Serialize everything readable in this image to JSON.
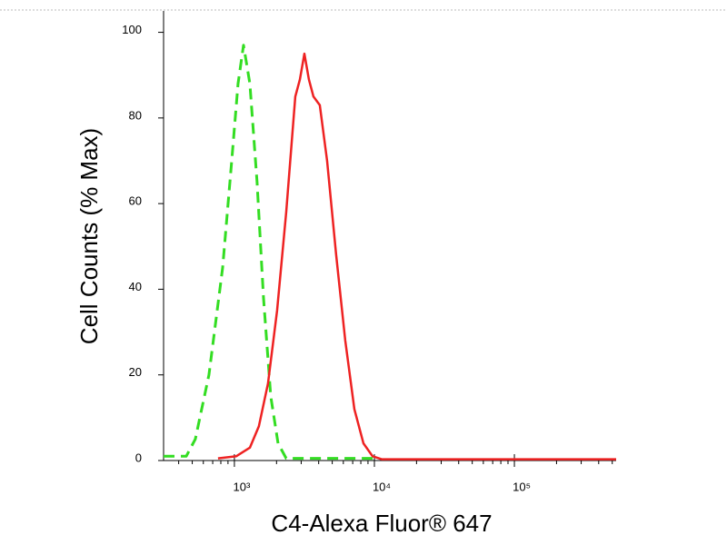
{
  "chart_data": {
    "type": "line",
    "x_label": "C4-Alexa Fluor® 647",
    "y_label": "Cell Counts (% Max)",
    "xscale": "log",
    "xlim": [
      312,
      533000
    ],
    "ylim": [
      0,
      105
    ],
    "xticks": [
      {
        "value": 1000,
        "label": "10³"
      },
      {
        "value": 10000,
        "label": "10⁴"
      },
      {
        "value": 100000,
        "label": "10⁵"
      }
    ],
    "xminorticks": [
      400,
      500,
      600,
      700,
      800,
      900,
      2000,
      3000,
      4000,
      5000,
      6000,
      7000,
      8000,
      9000,
      20000,
      30000,
      40000,
      50000,
      60000,
      70000,
      80000,
      90000,
      200000,
      300000,
      400000,
      500000
    ],
    "yticks": [
      0,
      20,
      40,
      60,
      80,
      100
    ],
    "series": [
      {
        "color": "#33dd22",
        "dashed": true,
        "x": [
          312,
          453,
          526,
          658,
          824,
          957,
          1062,
          1162,
          1290,
          1452,
          1614,
          1818,
          2051,
          2345,
          4594,
          10000
        ],
        "values": [
          1,
          1,
          5,
          20,
          45,
          70,
          88,
          97,
          88,
          65,
          38,
          15,
          4,
          0.5,
          0.5,
          0.5
        ]
      },
      {
        "color": "#ee2222",
        "dashed": false,
        "x": [
          764,
          1030,
          1290,
          1496,
          1738,
          2018,
          2345,
          2723,
          2937,
          3162,
          3405,
          3670,
          4074,
          4594,
          5333,
          6194,
          7194,
          8356,
          9705,
          11270,
          533000
        ],
        "values": [
          0.5,
          1,
          3,
          8,
          18,
          35,
          58,
          85,
          89,
          95,
          89,
          85,
          83,
          70,
          48,
          28,
          12,
          4,
          1,
          0.3,
          0.3
        ]
      }
    ]
  }
}
